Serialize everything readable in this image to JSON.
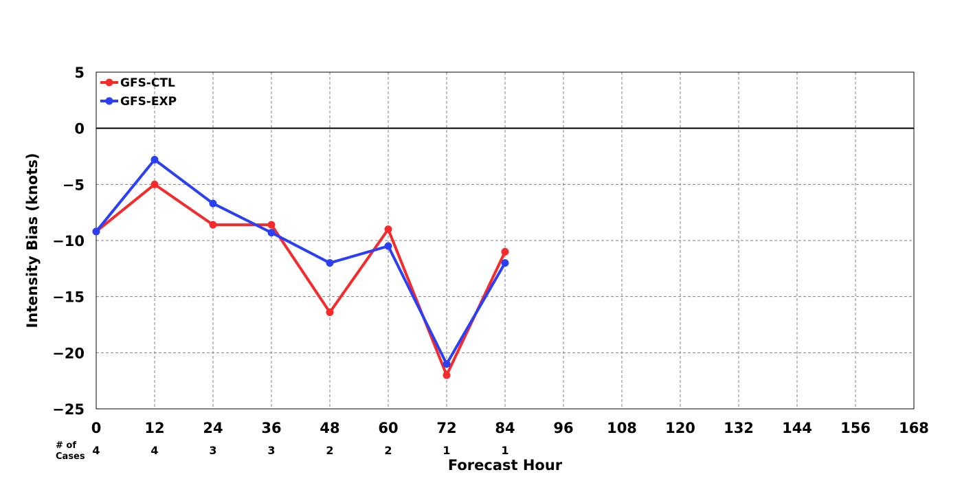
{
  "chart_data": {
    "type": "line",
    "ylabel": "Intensity Bias (knots)",
    "xlabel": "Forecast Hour",
    "cases_label_line1": "# of",
    "cases_label_line2": "Cases",
    "xlim": [
      0,
      168
    ],
    "ylim": [
      -25,
      5
    ],
    "xticks": [
      0,
      12,
      24,
      36,
      48,
      60,
      72,
      84,
      96,
      108,
      120,
      132,
      144,
      156,
      168
    ],
    "yticks": [
      5,
      0,
      -5,
      -10,
      -15,
      -20,
      -25
    ],
    "ytick_labels": [
      "5",
      "0",
      "−5",
      "−10",
      "−15",
      "−20",
      "−25"
    ],
    "grid": true,
    "zero_line": true,
    "legend_position": "top-left",
    "series": [
      {
        "name": "GFS-CTL",
        "color": "#f52a2a",
        "x": [
          0,
          12,
          24,
          36,
          48,
          60,
          72,
          84
        ],
        "y": [
          -9.2,
          -5.0,
          -8.6,
          -8.6,
          -16.4,
          -9.0,
          -22.0,
          -11.0
        ]
      },
      {
        "name": "GFS-EXP",
        "color": "#2b3ff5",
        "x": [
          0,
          12,
          24,
          36,
          48,
          60,
          72,
          84
        ],
        "y": [
          -9.2,
          -2.8,
          -6.7,
          -9.3,
          -12.0,
          -10.5,
          -21.0,
          -12.0
        ]
      }
    ],
    "cases": {
      "x": [
        0,
        12,
        24,
        36,
        48,
        60,
        72,
        84
      ],
      "counts": [
        "4",
        "4",
        "3",
        "3",
        "2",
        "2",
        "1",
        "1"
      ]
    }
  }
}
